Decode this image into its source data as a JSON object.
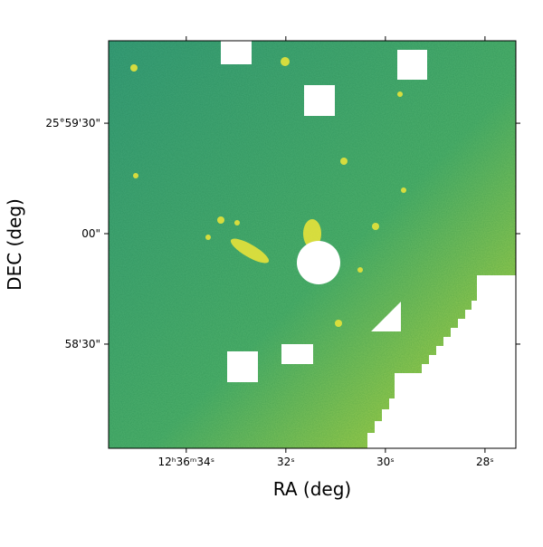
{
  "chart_data": {
    "type": "image",
    "xlabel": "RA (deg)",
    "ylabel": "DEC (deg)",
    "xlim": [
      35.56,
      27.38
    ],
    "xticks": [
      {
        "value": 34,
        "label": "12ʰ36ᵐ34ˢ"
      },
      {
        "value": 32,
        "label": "32ˢ"
      },
      {
        "value": 30,
        "label": "30ˢ"
      },
      {
        "value": 28,
        "label": "28ˢ"
      }
    ],
    "ylim": [
      -58.3,
      52.4
    ],
    "yticks": [
      {
        "value": 30,
        "label": "25°59'30\""
      },
      {
        "value": 0,
        "label": "00\""
      },
      {
        "value": -30,
        "label": "58'30\""
      }
    ]
  }
}
